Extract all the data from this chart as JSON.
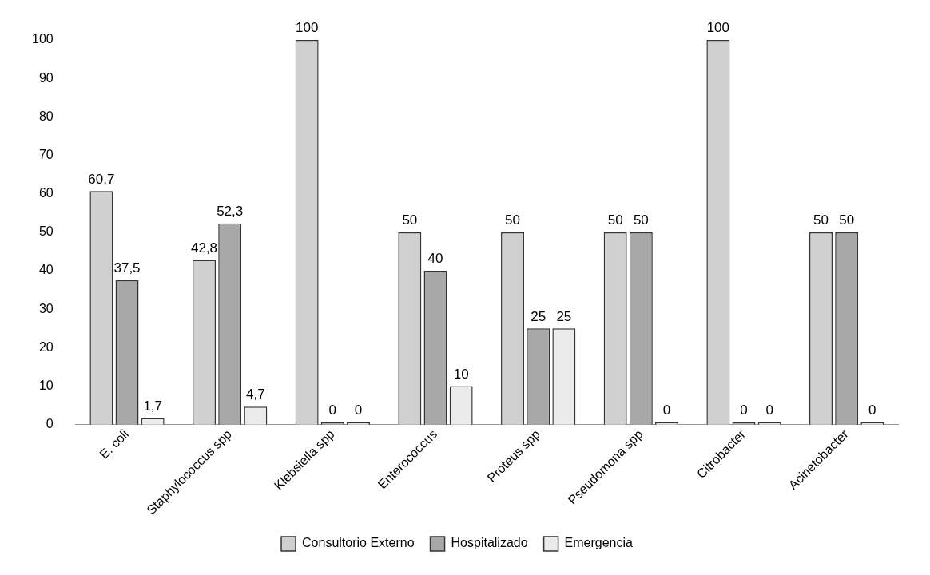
{
  "chart_data": {
    "type": "bar",
    "categories": [
      "E. coli",
      "Staphylococcus spp",
      "Klebsiella spp",
      "Enterococcus",
      "Proteus spp",
      "Pseudomona spp",
      "Citrobacter",
      "Acinetobacter"
    ],
    "series": [
      {
        "name": "Consultorio Externo",
        "color": "#d0d0d0",
        "values": [
          60.7,
          42.8,
          100,
          50,
          50,
          50,
          100,
          50
        ],
        "value_labels": [
          "60,7",
          "42,8",
          "100",
          "50",
          "50",
          "50",
          "100",
          "50"
        ]
      },
      {
        "name": "Hospitalizado",
        "color": "#a8a8a8",
        "values": [
          37.5,
          52.3,
          0,
          40,
          25,
          50,
          0,
          50
        ],
        "value_labels": [
          "37,5",
          "52,3",
          "0",
          "40",
          "25",
          "50",
          "0",
          "50"
        ]
      },
      {
        "name": "Emergencia",
        "color": "#ebebeb",
        "values": [
          1.7,
          4.7,
          0,
          10,
          25,
          0,
          0,
          0
        ],
        "value_labels": [
          "1,7",
          "4,7",
          "0",
          "10",
          "25",
          "0",
          "0",
          "0"
        ]
      }
    ],
    "ylim": [
      0,
      100
    ],
    "yticks": [
      0,
      10,
      20,
      30,
      40,
      50,
      60,
      70,
      80,
      90,
      100
    ],
    "grid": false,
    "legend": "bottom"
  }
}
